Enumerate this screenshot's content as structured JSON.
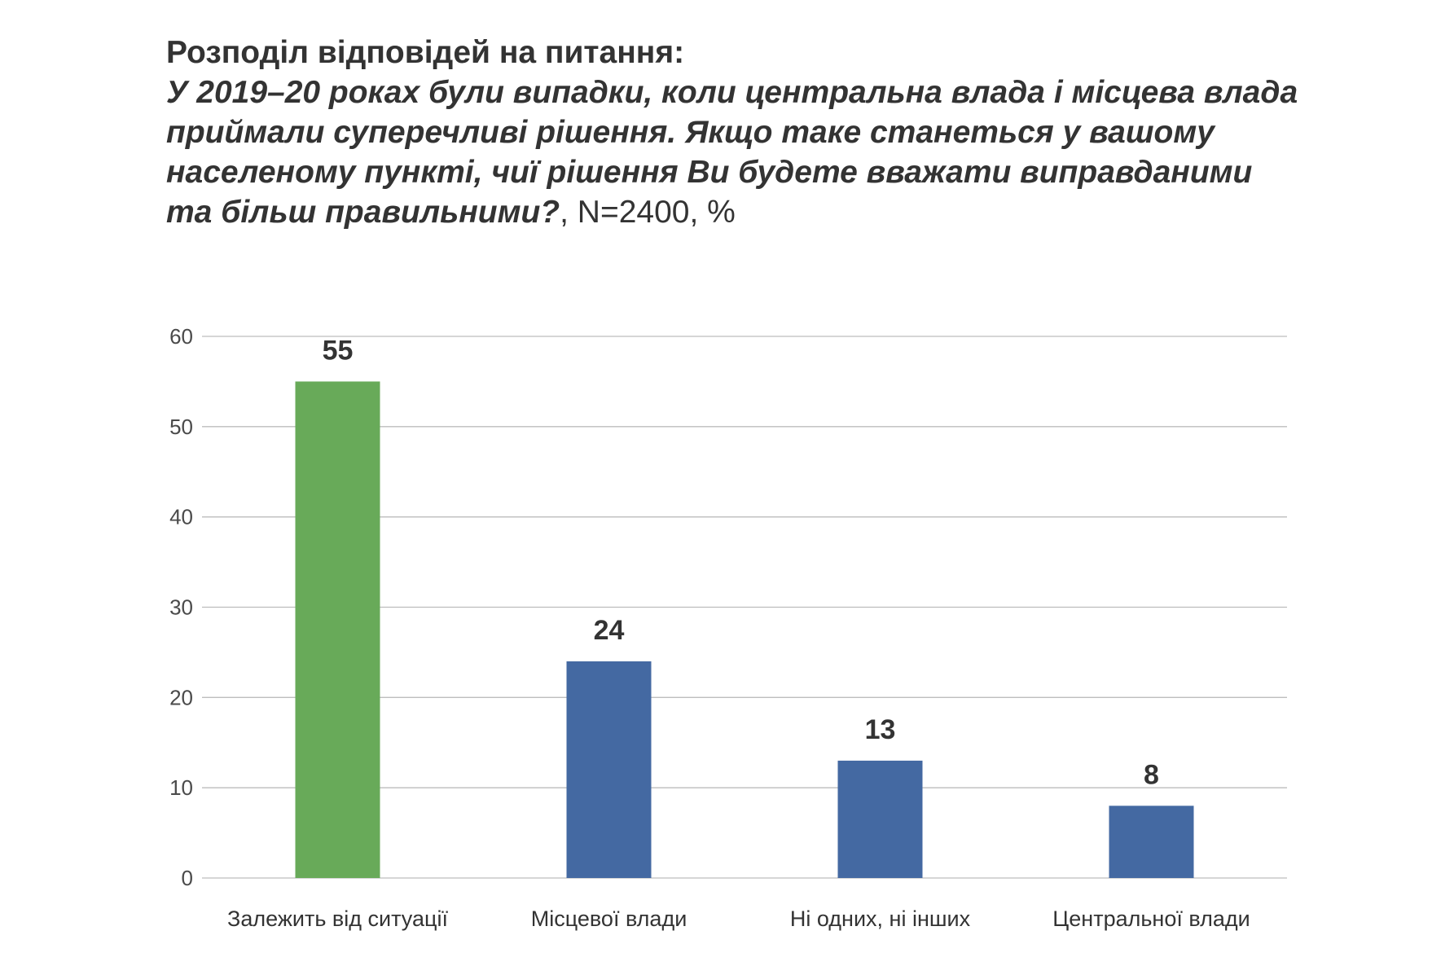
{
  "header": {
    "title": "Розподіл відповідей на питання:",
    "question": "У 2019–20 роках були випадки, коли центральна влада і місцева влада приймали суперечливі рішення. Якщо таке станеться у вашому населеному пункті, чиї рішення Ви будете вважати виправданими та більш правильними?",
    "note": ", N=2400, %"
  },
  "chart_data": {
    "type": "bar",
    "categories": [
      "Залежить від ситуації",
      "Місцевої влади",
      "Ні одних, ні інших",
      "Центральної влади"
    ],
    "values": [
      55,
      24,
      13,
      8
    ],
    "data_labels": [
      "55",
      "24",
      "13",
      "8"
    ],
    "ylim": [
      0,
      60
    ],
    "yticks": [
      0,
      10,
      20,
      30,
      40,
      50,
      60
    ],
    "grid": true,
    "legend": "none",
    "bar_colors": [
      "#68aa59",
      "#4469a2",
      "#4469a2",
      "#4469a2"
    ]
  },
  "colors": {
    "gridline": "#bdbdbd",
    "text": "#333333"
  }
}
